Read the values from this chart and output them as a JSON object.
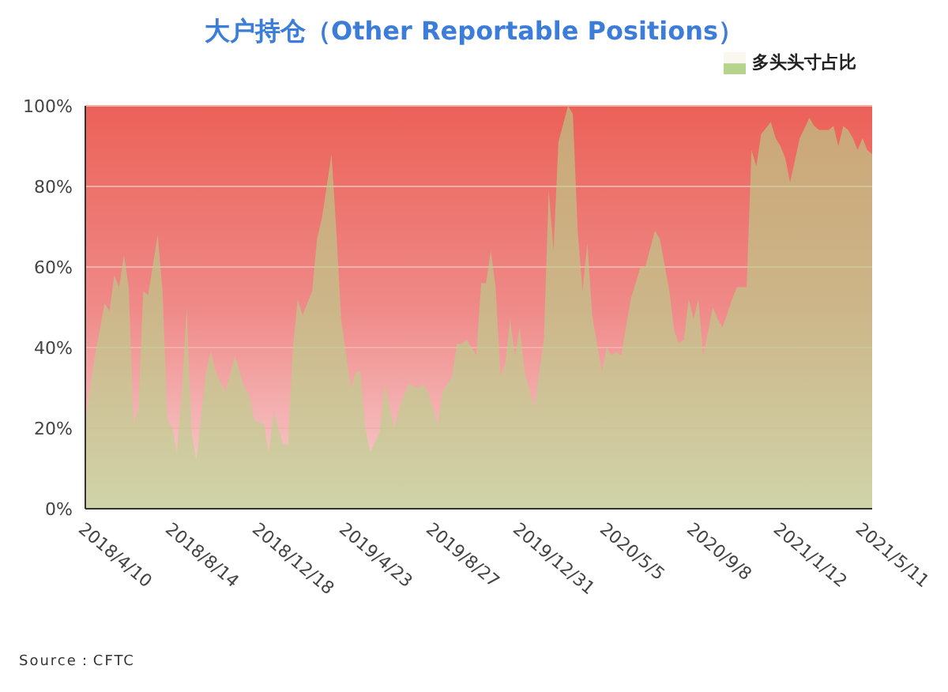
{
  "chart_data": {
    "type": "area",
    "title": "大户持仓（Other Reportable Positions）",
    "annotations": [
      "Source：CFTC"
    ],
    "legend": "top right",
    "grid": "y",
    "ylim": [
      0,
      100
    ],
    "yticks": [
      {
        "value": 0,
        "label": "0%"
      },
      {
        "value": 20,
        "label": "20%"
      },
      {
        "value": 40,
        "label": "40%"
      },
      {
        "value": 60,
        "label": "60%"
      },
      {
        "value": 80,
        "label": "80%"
      },
      {
        "value": 100,
        "label": "100%"
      }
    ],
    "xlim": [
      "2018-04-10",
      "2021-05-25"
    ],
    "xticks": [
      {
        "value": "2018-04-10",
        "label": "2018/4/10"
      },
      {
        "value": "2018-08-14",
        "label": "2018/8/14"
      },
      {
        "value": "2018-12-18",
        "label": "2018/12/18"
      },
      {
        "value": "2019-04-23",
        "label": "2019/4/23"
      },
      {
        "value": "2019-08-27",
        "label": "2019/8/27"
      },
      {
        "value": "2019-12-31",
        "label": "2019/12/31"
      },
      {
        "value": "2020-05-05",
        "label": "2020/5/5"
      },
      {
        "value": "2020-09-08",
        "label": "2020/9/8"
      },
      {
        "value": "2021-01-12",
        "label": "2021/1/12"
      },
      {
        "value": "2021-05-11",
        "label": "2021/5/11"
      }
    ],
    "x": [
      "2018-04-10",
      "2018-04-17",
      "2018-04-24",
      "2018-05-08",
      "2018-05-15",
      "2018-05-22",
      "2018-05-29",
      "2018-06-05",
      "2018-06-12",
      "2018-06-19",
      "2018-06-26",
      "2018-07-03",
      "2018-07-10",
      "2018-07-24",
      "2018-07-31",
      "2018-08-07",
      "2018-08-14",
      "2018-08-21",
      "2018-08-28",
      "2018-09-04",
      "2018-09-11",
      "2018-09-18",
      "2018-10-02",
      "2018-10-09",
      "2018-10-16",
      "2018-10-30",
      "2018-11-13",
      "2018-11-27",
      "2018-12-04",
      "2018-12-11",
      "2018-12-25",
      "2019-01-01",
      "2019-01-08",
      "2019-01-22",
      "2019-01-29",
      "2019-02-05",
      "2019-02-12",
      "2019-02-19",
      "2019-03-05",
      "2019-03-12",
      "2019-03-19",
      "2019-04-02",
      "2019-04-09",
      "2019-04-16",
      "2019-04-30",
      "2019-05-07",
      "2019-05-14",
      "2019-05-21",
      "2019-05-28",
      "2019-06-11",
      "2019-06-18",
      "2019-07-02",
      "2019-07-09",
      "2019-07-23",
      "2019-08-06",
      "2019-08-13",
      "2019-08-20",
      "2019-09-03",
      "2019-09-10",
      "2019-09-24",
      "2019-10-01",
      "2019-10-08",
      "2019-10-15",
      "2019-10-29",
      "2019-11-05",
      "2019-11-12",
      "2019-11-19",
      "2019-11-26",
      "2019-12-03",
      "2019-12-10",
      "2019-12-17",
      "2019-12-24",
      "2019-12-31",
      "2020-01-07",
      "2020-01-21",
      "2020-02-04",
      "2020-02-11",
      "2020-02-18",
      "2020-02-25",
      "2020-03-10",
      "2020-03-17",
      "2020-03-24",
      "2020-03-31",
      "2020-04-07",
      "2020-04-14",
      "2020-04-28",
      "2020-05-05",
      "2020-05-12",
      "2020-05-19",
      "2020-05-26",
      "2020-06-09",
      "2020-06-23",
      "2020-06-30",
      "2020-07-14",
      "2020-07-21",
      "2020-08-04",
      "2020-08-11",
      "2020-08-18",
      "2020-08-25",
      "2020-09-01",
      "2020-09-08",
      "2020-09-15",
      "2020-09-22",
      "2020-10-06",
      "2020-10-13",
      "2020-10-20",
      "2020-11-03",
      "2020-11-10",
      "2020-11-24",
      "2020-12-01",
      "2020-12-08",
      "2020-12-15",
      "2020-12-29",
      "2021-01-05",
      "2021-01-12",
      "2021-01-19",
      "2021-01-26",
      "2021-02-09",
      "2021-02-23",
      "2021-03-02",
      "2021-03-09",
      "2021-03-23",
      "2021-03-30",
      "2021-04-06",
      "2021-04-13",
      "2021-04-20",
      "2021-04-27",
      "2021-05-04",
      "2021-05-11",
      "2021-05-18",
      "2021-05-25"
    ],
    "series": [
      {
        "name": "多头头寸占比",
        "color": "#b5d38a",
        "values": [
          21,
          30,
          38,
          51,
          49,
          58,
          55,
          63,
          55,
          21,
          25,
          54,
          53,
          68,
          54,
          22,
          20,
          14,
          29,
          50,
          19,
          12,
          34,
          39,
          34,
          29,
          38,
          30,
          28,
          22,
          21,
          14,
          24,
          16,
          16,
          40,
          52,
          48,
          54,
          67,
          72,
          88,
          69,
          47,
          30,
          34,
          34,
          20,
          14,
          19,
          31,
          20,
          25,
          31,
          30,
          31,
          29,
          21,
          29,
          33,
          41,
          41,
          42,
          38,
          56,
          56,
          64,
          55,
          33,
          36,
          47,
          38,
          45,
          34,
          25,
          42,
          79,
          64,
          91,
          100,
          98,
          69,
          54,
          66,
          48,
          34,
          40,
          38,
          39,
          38,
          52,
          60,
          60,
          69,
          67,
          54,
          44,
          41,
          42,
          52,
          47,
          52,
          38,
          50,
          47,
          45,
          52,
          55,
          55,
          89,
          85,
          93,
          96,
          92,
          90,
          87,
          81,
          92,
          97,
          95,
          94,
          94,
          95,
          90,
          95,
          94,
          92,
          89,
          92,
          89,
          88
        ]
      }
    ]
  }
}
